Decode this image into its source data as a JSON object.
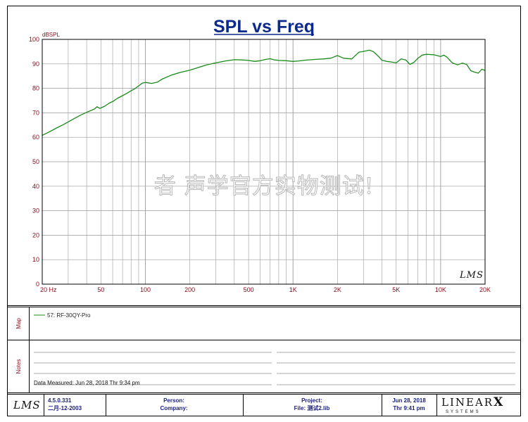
{
  "title": "SPL vs Freq",
  "watermark": "者  声学官方实物测试!",
  "plot_logo": "LMS",
  "legend_entry": "57: RF-30QY-Pro",
  "sections": {
    "map": "Map",
    "notes": "Notes"
  },
  "notes": {
    "data_measured": "Data Measured: Jun 28, 2018  Thr  9:34 pm"
  },
  "footer": {
    "logo": "LMS",
    "version": "4.5.0.331",
    "version_date": "二月-12-2003",
    "person_label": "Person:",
    "company_label": "Company:",
    "project_label": "Project:",
    "file_label": "File: 测试2.lib",
    "date": "Jun 28, 2018",
    "time": "Thr  9:41 pm",
    "brand": "LINEAR",
    "brand_x": "X",
    "brand_sub": "SYSTEMS"
  },
  "colors": {
    "curve": "#1a8a1a",
    "title": "#0b2a8a",
    "axis_text": "#8a1020",
    "grid": "#9a9a9a",
    "footer_text": "#1a1f7a"
  },
  "chart_data": {
    "type": "line",
    "title": "SPL vs Freq",
    "ylabel": "dBSPL",
    "xlabel": "Hz",
    "x_scale": "log",
    "xlim": [
      20,
      20000
    ],
    "ylim": [
      0,
      100
    ],
    "grid": true,
    "y_ticks": [
      0,
      10,
      20,
      30,
      40,
      50,
      60,
      70,
      80,
      90,
      100
    ],
    "x_ticks": [
      {
        "value": 20,
        "label": "20  Hz"
      },
      {
        "value": 50,
        "label": "50"
      },
      {
        "value": 100,
        "label": "100"
      },
      {
        "value": 200,
        "label": "200"
      },
      {
        "value": 500,
        "label": "500"
      },
      {
        "value": 1000,
        "label": "1K"
      },
      {
        "value": 2000,
        "label": "2K"
      },
      {
        "value": 5000,
        "label": "5K"
      },
      {
        "value": 10000,
        "label": "10K"
      },
      {
        "value": 20000,
        "label": "20K"
      }
    ],
    "series": [
      {
        "name": "57: RF-30QY-Pro",
        "color": "#1a8a1a",
        "x": [
          20,
          22,
          25,
          28,
          30,
          33,
          36,
          40,
          43,
          45,
          47,
          49,
          50,
          53,
          57,
          60,
          65,
          70,
          75,
          80,
          85,
          90,
          95,
          100,
          110,
          120,
          130,
          150,
          170,
          200,
          230,
          260,
          300,
          350,
          400,
          450,
          500,
          550,
          600,
          650,
          700,
          750,
          800,
          900,
          1000,
          1100,
          1200,
          1400,
          1600,
          1800,
          2000,
          2200,
          2500,
          2800,
          3000,
          3300,
          3500,
          3800,
          4000,
          4300,
          4600,
          5000,
          5400,
          5800,
          6200,
          6600,
          7000,
          7500,
          8000,
          9000,
          10000,
          10500,
          11000,
          12000,
          13000,
          14000,
          15000,
          16000,
          17000,
          18000,
          19000,
          20000
        ],
        "y": [
          60.8,
          62.0,
          63.8,
          65.3,
          66.3,
          67.7,
          68.9,
          70.2,
          71.0,
          71.5,
          72.5,
          71.8,
          72.0,
          72.7,
          74.0,
          74.6,
          76.0,
          77.0,
          78.0,
          79.0,
          79.9,
          81.0,
          82.1,
          82.4,
          82.0,
          82.5,
          83.8,
          85.4,
          86.4,
          87.4,
          88.6,
          89.6,
          90.4,
          91.2,
          91.7,
          91.6,
          91.4,
          91.0,
          91.3,
          91.8,
          92.1,
          91.6,
          91.4,
          91.3,
          91.0,
          91.2,
          91.5,
          91.8,
          92.0,
          92.3,
          93.4,
          92.3,
          92.0,
          94.8,
          95.1,
          95.6,
          95.0,
          93.0,
          91.5,
          91.0,
          90.8,
          90.4,
          92.0,
          91.6,
          89.8,
          90.6,
          92.2,
          93.6,
          93.9,
          93.7,
          93.0,
          93.6,
          92.8,
          90.4,
          89.6,
          90.3,
          89.8,
          87.2,
          86.6,
          86.2,
          87.8,
          87.3
        ]
      }
    ]
  }
}
